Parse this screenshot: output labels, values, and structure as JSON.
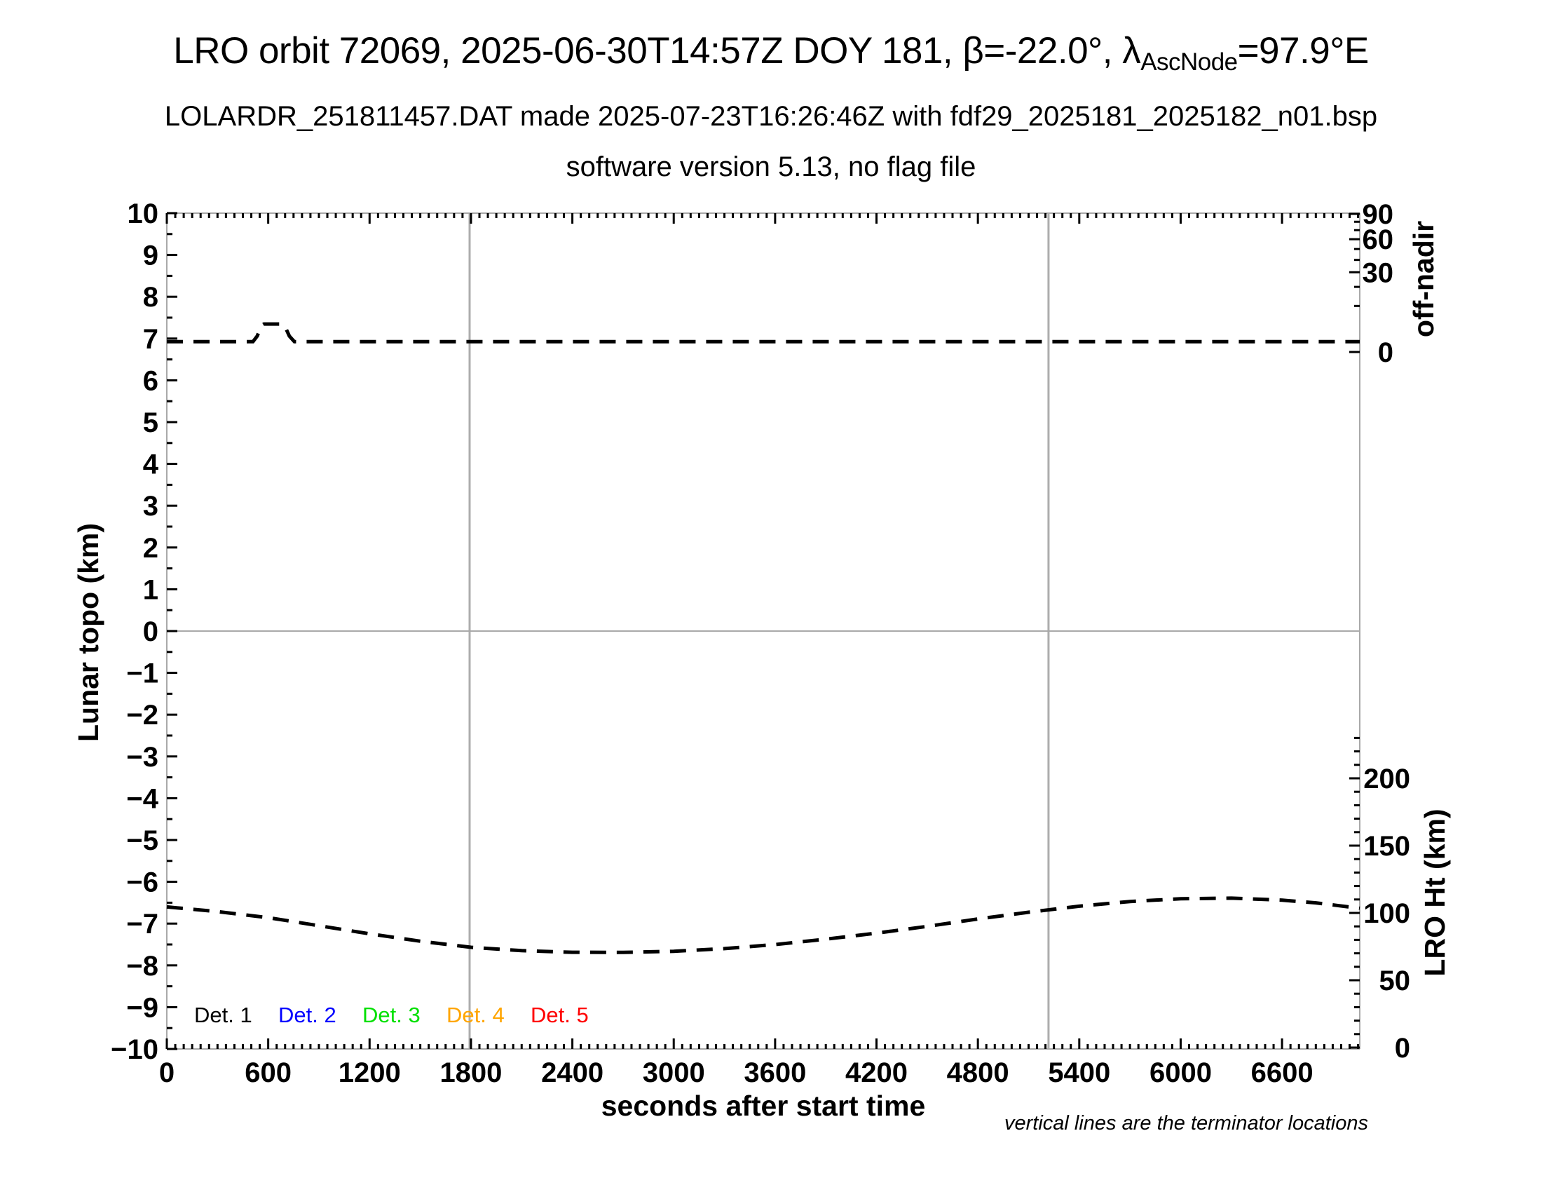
{
  "title": {
    "main": "LRO orbit 72069, 2025-06-30T14:57Z DOY 181, β=-22.0°, λ",
    "subscript": "AscNode",
    "tail": "=97.9°E"
  },
  "subtitle1": "LOLARDR_251811457.DAT made 2025-07-23T16:26:46Z with fdf29_2025181_2025182_n01.bsp",
  "subtitle2": "software version 5.13, no flag file",
  "footnote": "vertical lines are the terminator locations",
  "legend": {
    "items": [
      {
        "label": "Det. 1",
        "color": "#000000"
      },
      {
        "label": "Det. 2",
        "color": "#0000ff"
      },
      {
        "label": "Det. 3",
        "color": "#00e000"
      },
      {
        "label": "Det. 4",
        "color": "#ffa500"
      },
      {
        "label": "Det. 5",
        "color": "#ff0000"
      }
    ]
  },
  "chart_data": {
    "type": "line",
    "title": "LRO orbit 72069, 2025-06-30T14:57Z DOY 181, β=-22.0°, λAscNode=97.9°E",
    "xlabel": "seconds after start time",
    "x_axis": {
      "range": [
        0,
        7060
      ],
      "major_ticks": [
        0,
        600,
        1200,
        1800,
        2400,
        3000,
        3600,
        4200,
        4800,
        5400,
        6000,
        6600
      ],
      "minor_step": 50
    },
    "y_axis_left": {
      "label": "Lunar topo (km)",
      "range": [
        -10,
        10
      ],
      "major_step": 1,
      "minor_step": 0.5
    },
    "y_axis_right_top": {
      "label": "off-nadir",
      "units": "degrees",
      "scale": "sqrt",
      "major_ticks": [
        90,
        60,
        30,
        0
      ],
      "minor_ticks": [
        80,
        70,
        50,
        40,
        20,
        10
      ]
    },
    "y_axis_right_bottom": {
      "label": "LRO Ht (km)",
      "major_ticks": [
        200,
        150,
        100,
        50,
        0
      ],
      "minor_step": 10,
      "minor_max": 230
    },
    "zero_gridline": true,
    "terminator_lines_s": [
      1792,
      5218
    ],
    "series": [
      {
        "name": "off-nadir angle",
        "axis": "right_top",
        "color": "#000000",
        "style": "dashed",
        "points": [
          [
            0,
            0.5
          ],
          [
            510,
            0.5
          ],
          [
            535,
            1.2
          ],
          [
            560,
            3.3
          ],
          [
            575,
            3.7
          ],
          [
            685,
            3.7
          ],
          [
            700,
            3.0
          ],
          [
            725,
            1.2
          ],
          [
            755,
            0.5
          ],
          [
            3600,
            0.5
          ],
          [
            7060,
            0.5
          ]
        ]
      },
      {
        "name": "LRO height",
        "axis": "right_bottom",
        "color": "#000000",
        "style": "dashed",
        "points": [
          [
            0,
            104.5
          ],
          [
            300,
            101
          ],
          [
            600,
            96.5
          ],
          [
            900,
            90.5
          ],
          [
            1200,
            84.5
          ],
          [
            1500,
            79
          ],
          [
            1800,
            74.5
          ],
          [
            2100,
            72
          ],
          [
            2400,
            70.8
          ],
          [
            2700,
            70.7
          ],
          [
            3000,
            71.5
          ],
          [
            3300,
            73.5
          ],
          [
            3600,
            76.5
          ],
          [
            3900,
            80.5
          ],
          [
            4200,
            85
          ],
          [
            4500,
            90
          ],
          [
            4800,
            95.5
          ],
          [
            5100,
            100.5
          ],
          [
            5400,
            105
          ],
          [
            5700,
            108.5
          ],
          [
            6000,
            110.5
          ],
          [
            6300,
            111
          ],
          [
            6600,
            109.5
          ],
          [
            6800,
            107.5
          ],
          [
            7060,
            103.5
          ]
        ]
      }
    ]
  }
}
